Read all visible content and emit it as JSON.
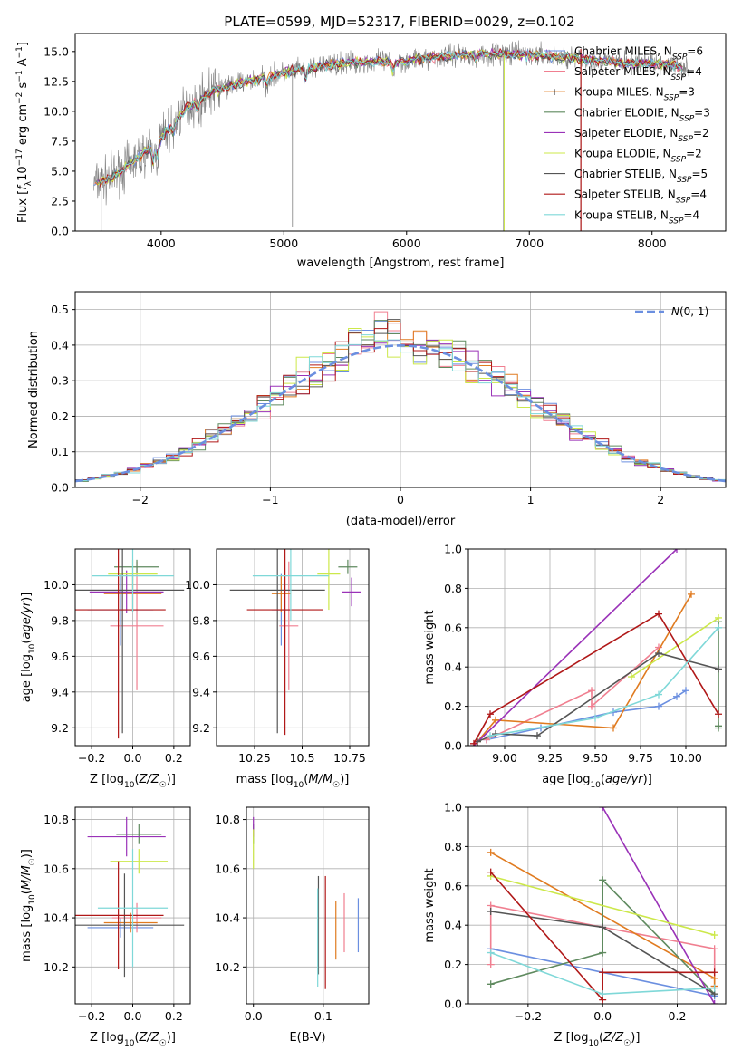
{
  "figure_title": "PLATE=0599, MJD=52317, FIBERID=0029, z=0.102",
  "colors": {
    "Chabrier MILES": "#6b8fe0",
    "Salpeter MILES": "#f07f90",
    "Kroupa MILES": "#e07b20",
    "Chabrier ELODIE": "#5f8a5f",
    "Salpeter ELODIE": "#9a32b8",
    "Kroupa ELODIE": "#cce84a",
    "Chabrier STELIB": "#555555",
    "Salpeter STELIB": "#b01818",
    "Kroupa STELIB": "#7fd8d8",
    "observed": "#808080",
    "normal": "#6b8fe0"
  },
  "chart_data": [
    {
      "type": "line",
      "title": "PLATE=0599, MJD=52317, FIBERID=0029, z=0.102",
      "xlabel": "wavelength [Angstrom, rest frame]",
      "ylabel": "Flux [f_λ 10^-17 erg cm^-2 s^-1 A^-1]",
      "xlim": [
        3300,
        8600
      ],
      "ylim": [
        0,
        16.5
      ],
      "xticks": [
        4000,
        5000,
        6000,
        7000,
        8000
      ],
      "yticks": [
        0.0,
        2.5,
        5.0,
        7.5,
        10.0,
        12.5,
        15.0
      ],
      "grid": false,
      "legend_position": "top-right",
      "continuum": {
        "x": [
          3450,
          3600,
          3800,
          4000,
          4200,
          4400,
          4600,
          4800,
          5000,
          5200,
          5400,
          5600,
          5800,
          6000,
          6200,
          6400,
          6600,
          6800,
          7000,
          7200,
          7400,
          7600,
          7800,
          8000,
          8200,
          8300
        ],
        "y": [
          3.9,
          4.5,
          6.0,
          7.8,
          10.2,
          11.6,
          12.3,
          12.7,
          13.2,
          13.6,
          13.9,
          14.1,
          14.1,
          14.2,
          14.5,
          14.7,
          14.8,
          14.8,
          14.7,
          14.6,
          14.4,
          14.2,
          14.0,
          14.0,
          13.8,
          13.7
        ]
      },
      "series": [
        {
          "name": "Chabrier MILES",
          "n_ssp": 6
        },
        {
          "name": "Salpeter MILES",
          "n_ssp": 4
        },
        {
          "name": "Kroupa MILES",
          "n_ssp": 3
        },
        {
          "name": "Chabrier ELODIE",
          "n_ssp": 3
        },
        {
          "name": "Salpeter ELODIE",
          "n_ssp": 2
        },
        {
          "name": "Kroupa ELODIE",
          "n_ssp": 2
        },
        {
          "name": "Chabrier STELIB",
          "n_ssp": 5
        },
        {
          "name": "Salpeter STELIB",
          "n_ssp": 4
        },
        {
          "name": "Kroupa STELIB",
          "n_ssp": 4
        }
      ]
    },
    {
      "type": "line",
      "xlabel": "(data-model)/error",
      "ylabel": "Normed distribution",
      "xlim": [
        -2.5,
        2.5
      ],
      "ylim": [
        0,
        0.55
      ],
      "xticks": [
        -2,
        -1,
        0,
        1,
        2
      ],
      "yticks": [
        0.0,
        0.1,
        0.2,
        0.3,
        0.4,
        0.5
      ],
      "grid": true,
      "legend_position": "top-right",
      "legend": "N(0,1)"
    },
    {
      "type": "scatter",
      "xlabel": "Z [log10(Z/Z☉)]",
      "ylabel": "age [log10(age/yr)]",
      "xlim": [
        -0.28,
        0.28
      ],
      "ylim": [
        9.1,
        10.2
      ],
      "xticks": [
        -0.2,
        0.0,
        0.2
      ],
      "yticks": [
        9.2,
        9.4,
        9.6,
        9.8,
        10.0
      ],
      "points": [
        {
          "model": "Chabrier MILES",
          "x": -0.06,
          "y": 9.86,
          "xerr": 0.16,
          "yerr": 0.2
        },
        {
          "model": "Salpeter MILES",
          "x": 0.02,
          "y": 9.77,
          "xerr": 0.13,
          "yerr": 0.36
        },
        {
          "model": "Kroupa MILES",
          "x": 0.0,
          "y": 9.95,
          "xerr": 0.14,
          "yerr": 0.1
        },
        {
          "model": "Chabrier ELODIE",
          "x": 0.02,
          "y": 10.1,
          "xerr": 0.11,
          "yerr": 0.04
        },
        {
          "model": "Salpeter ELODIE",
          "x": -0.03,
          "y": 9.96,
          "xerr": 0.18,
          "yerr": 0.12
        },
        {
          "model": "Kroupa ELODIE",
          "x": 0.0,
          "y": 10.06,
          "xerr": 0.12,
          "yerr": 0.08
        },
        {
          "model": "Chabrier STELIB",
          "x": -0.05,
          "y": 9.97,
          "xerr": 0.3,
          "yerr": 0.8
        },
        {
          "model": "Salpeter STELIB",
          "x": -0.07,
          "y": 9.86,
          "xerr": 0.23,
          "yerr": 0.72
        },
        {
          "model": "Kroupa STELIB",
          "x": 0.0,
          "y": 10.05,
          "xerr": 0.2,
          "yerr": 0.2
        }
      ]
    },
    {
      "type": "scatter",
      "xlabel": "mass [log10(M/M☉)]",
      "ylabel": "",
      "xlim": [
        10.05,
        10.85
      ],
      "ylim": [
        9.1,
        10.2
      ],
      "xticks": [
        10.25,
        10.5,
        10.75
      ],
      "yticks": [
        9.2,
        9.4,
        9.6,
        9.8,
        10.0
      ],
      "points": [
        {
          "model": "Chabrier MILES",
          "x": 10.39,
          "y": 9.86,
          "xerr": 0.05,
          "yerr": 0.2
        },
        {
          "model": "Salpeter MILES",
          "x": 10.43,
          "y": 9.77,
          "xerr": 0.05,
          "yerr": 0.36
        },
        {
          "model": "Kroupa MILES",
          "x": 10.39,
          "y": 9.95,
          "xerr": 0.05,
          "yerr": 0.1
        },
        {
          "model": "Chabrier ELODIE",
          "x": 10.74,
          "y": 10.1,
          "xerr": 0.05,
          "yerr": 0.04
        },
        {
          "model": "Salpeter ELODIE",
          "x": 10.76,
          "y": 9.96,
          "xerr": 0.05,
          "yerr": 0.08
        },
        {
          "model": "Kroupa ELODIE",
          "x": 10.64,
          "y": 10.06,
          "xerr": 0.06,
          "yerr": 0.2
        },
        {
          "model": "Chabrier STELIB",
          "x": 10.37,
          "y": 9.97,
          "xerr": 0.25,
          "yerr": 0.8
        },
        {
          "model": "Salpeter STELIB",
          "x": 10.41,
          "y": 9.86,
          "xerr": 0.2,
          "yerr": 0.7
        },
        {
          "model": "Kroupa STELIB",
          "x": 10.44,
          "y": 10.05,
          "xerr": 0.2,
          "yerr": 0.25
        }
      ]
    },
    {
      "type": "line",
      "xlabel": "age [log10(age/yr)]",
      "ylabel": "mass weight",
      "xlim": [
        8.8,
        10.22
      ],
      "ylim": [
        0,
        1.0
      ],
      "xticks": [
        9.0,
        9.25,
        9.5,
        9.75,
        10.0
      ],
      "yticks": [
        0.0,
        0.2,
        0.4,
        0.6,
        0.8,
        1.0
      ],
      "grid": true,
      "series": [
        {
          "model": "Chabrier MILES",
          "x": [
            8.9,
            9.2,
            9.6,
            9.85,
            9.95,
            10.0
          ],
          "y": [
            0.03,
            0.09,
            0.17,
            0.2,
            0.25,
            0.28
          ]
        },
        {
          "model": "Salpeter MILES",
          "x": [
            8.9,
            9.48,
            9.48,
            9.85
          ],
          "y": [
            0.03,
            0.28,
            0.2,
            0.5
          ]
        },
        {
          "model": "Kroupa MILES",
          "x": [
            8.85,
            8.95,
            9.6,
            10.03
          ],
          "y": [
            0.02,
            0.13,
            0.09,
            0.77
          ]
        },
        {
          "model": "Chabrier ELODIE",
          "x": [
            10.18,
            10.18,
            10.18
          ],
          "y": [
            0.1,
            0.63,
            0.09
          ]
        },
        {
          "model": "Salpeter ELODIE",
          "x": [
            8.83,
            9.95
          ],
          "y": [
            0.0,
            1.0
          ]
        },
        {
          "model": "Kroupa ELODIE",
          "x": [
            9.7,
            10.18
          ],
          "y": [
            0.35,
            0.65
          ]
        },
        {
          "model": "Chabrier STELIB",
          "x": [
            8.85,
            8.95,
            9.18,
            9.85,
            10.18
          ],
          "y": [
            0.02,
            0.06,
            0.05,
            0.47,
            0.39
          ]
        },
        {
          "model": "Salpeter STELIB",
          "x": [
            8.83,
            8.92,
            9.85,
            10.18
          ],
          "y": [
            0.01,
            0.16,
            0.67,
            0.16
          ]
        },
        {
          "model": "Kroupa STELIB",
          "x": [
            8.92,
            9.5,
            9.85,
            10.18
          ],
          "y": [
            0.05,
            0.14,
            0.26,
            0.6
          ]
        }
      ]
    },
    {
      "type": "scatter",
      "xlabel": "Z [log10(Z/Z☉)]",
      "ylabel": "mass [log10(M/M☉)]",
      "xlim": [
        -0.28,
        0.28
      ],
      "ylim": [
        10.05,
        10.85
      ],
      "xticks": [
        -0.2,
        0.0,
        0.2
      ],
      "yticks": [
        10.2,
        10.4,
        10.6,
        10.8
      ],
      "points": [
        {
          "model": "Chabrier MILES",
          "x": -0.06,
          "y": 10.36,
          "xerr": 0.16,
          "yerr": 0.04
        },
        {
          "model": "Salpeter MILES",
          "x": 0.02,
          "y": 10.4,
          "xerr": 0.12,
          "yerr": 0.06
        },
        {
          "model": "Kroupa MILES",
          "x": -0.01,
          "y": 10.38,
          "xerr": 0.13,
          "yerr": 0.04
        },
        {
          "model": "Chabrier ELODIE",
          "x": 0.03,
          "y": 10.74,
          "xerr": 0.11,
          "yerr": 0.04
        },
        {
          "model": "Salpeter ELODIE",
          "x": -0.03,
          "y": 10.73,
          "xerr": 0.19,
          "yerr": 0.08
        },
        {
          "model": "Kroupa ELODIE",
          "x": 0.03,
          "y": 10.63,
          "xerr": 0.14,
          "yerr": 0.05
        },
        {
          "model": "Chabrier STELIB",
          "x": -0.04,
          "y": 10.37,
          "xerr": 0.29,
          "yerr": 0.21
        },
        {
          "model": "Salpeter STELIB",
          "x": -0.07,
          "y": 10.41,
          "xerr": 0.22,
          "yerr": 0.22
        },
        {
          "model": "Kroupa STELIB",
          "x": 0.0,
          "y": 10.44,
          "xerr": 0.17,
          "yerr": 0.24
        }
      ]
    },
    {
      "type": "scatter",
      "xlabel": "E(B-V)",
      "ylabel": "",
      "xlim": [
        -0.01,
        0.165
      ],
      "ylim": [
        10.05,
        10.85
      ],
      "xticks": [
        0.0,
        0.1
      ],
      "yticks": [
        10.2,
        10.4,
        10.6,
        10.8
      ],
      "points": [
        {
          "model": "Chabrier MILES",
          "x": 0.15,
          "y": 10.37,
          "yerr": 0.11
        },
        {
          "model": "Salpeter MILES",
          "x": 0.13,
          "y": 10.38,
          "yerr": 0.12
        },
        {
          "model": "Kroupa MILES",
          "x": 0.118,
          "y": 10.35,
          "yerr": 0.12
        },
        {
          "model": "Chabrier ELODIE",
          "x": 0.0,
          "y": 10.74,
          "yerr": 0.04
        },
        {
          "model": "Salpeter ELODIE",
          "x": 0.0,
          "y": 10.77,
          "yerr": 0.04
        },
        {
          "model": "Kroupa ELODIE",
          "x": 0.0,
          "y": 10.68,
          "yerr": 0.08
        },
        {
          "model": "Chabrier STELIB",
          "x": 0.093,
          "y": 10.37,
          "yerr": 0.2
        },
        {
          "model": "Salpeter STELIB",
          "x": 0.103,
          "y": 10.34,
          "yerr": 0.23
        },
        {
          "model": "Kroupa STELIB",
          "x": 0.092,
          "y": 10.32,
          "yerr": 0.2
        }
      ]
    },
    {
      "type": "line",
      "xlabel": "Z [log10(Z/Z☉)]",
      "ylabel": "mass weight",
      "xlim": [
        -0.36,
        0.33
      ],
      "ylim": [
        0,
        1.0
      ],
      "xticks": [
        -0.2,
        0.0,
        0.2
      ],
      "yticks": [
        0.0,
        0.2,
        0.4,
        0.6,
        0.8,
        1.0
      ],
      "grid": true,
      "series": [
        {
          "model": "Chabrier MILES",
          "x": [
            -0.3,
            0.0,
            0.3
          ],
          "y": [
            0.28,
            0.16,
            0.04
          ]
        },
        {
          "model": "Salpeter MILES",
          "x": [
            -0.3,
            -0.3,
            0.3,
            0.3
          ],
          "y": [
            0.2,
            0.5,
            0.28,
            0.09
          ]
        },
        {
          "model": "Kroupa MILES",
          "x": [
            -0.3,
            0.3,
            0.3
          ],
          "y": [
            0.77,
            0.13,
            0.09
          ]
        },
        {
          "model": "Chabrier ELODIE",
          "x": [
            -0.3,
            0.0,
            0.0,
            0.3
          ],
          "y": [
            0.1,
            0.26,
            0.63,
            0.05
          ]
        },
        {
          "model": "Salpeter ELODIE",
          "x": [
            0.0,
            0.3
          ],
          "y": [
            1.0,
            0.0
          ]
        },
        {
          "model": "Kroupa ELODIE",
          "x": [
            -0.3,
            0.3
          ],
          "y": [
            0.65,
            0.35
          ]
        },
        {
          "model": "Chabrier STELIB",
          "x": [
            -0.3,
            0.0,
            0.3
          ],
          "y": [
            0.47,
            0.39,
            0.05
          ]
        },
        {
          "model": "Salpeter STELIB",
          "x": [
            -0.3,
            0.0,
            0.0,
            0.3
          ],
          "y": [
            0.67,
            0.02,
            0.16,
            0.16
          ]
        },
        {
          "model": "Kroupa STELIB",
          "x": [
            -0.3,
            0.0,
            0.3
          ],
          "y": [
            0.26,
            0.05,
            0.08
          ]
        }
      ]
    }
  ]
}
